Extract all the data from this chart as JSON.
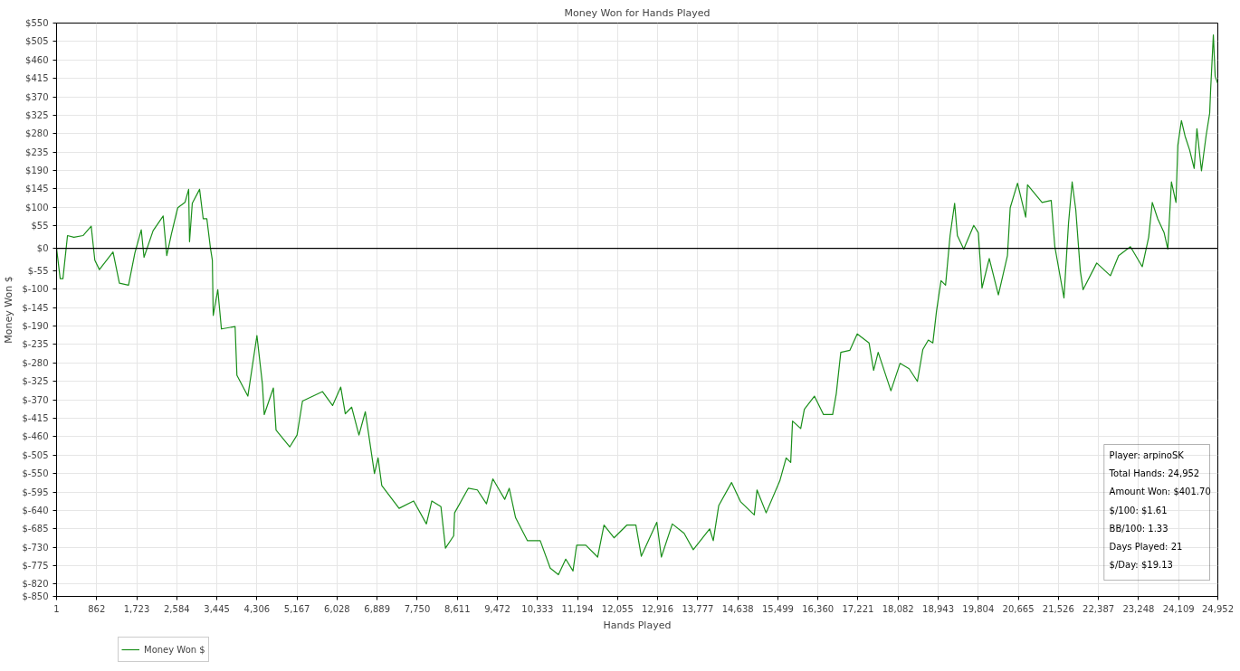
{
  "chart_data": {
    "type": "line",
    "title": "Money Won for Hands Played",
    "xlabel": "Hands Played",
    "ylabel": "Money Won $",
    "series": [
      {
        "name": "Money Won $",
        "color": "#1a8f1a",
        "x": [
          1,
          79,
          138,
          236,
          373,
          569,
          745,
          823,
          921,
          1214,
          1351,
          1547,
          1684,
          1821,
          1880,
          2075,
          2291,
          2369,
          2467,
          2604,
          2760,
          2839,
          2858,
          2917,
          3074,
          3152,
          3230,
          3308,
          3348,
          3367,
          3465,
          3543,
          3837,
          3876,
          4111,
          4306,
          4424,
          4463,
          4659,
          4717,
          5011,
          5168,
          5285,
          5716,
          5931,
          6107,
          6205,
          6342,
          6498,
          6635,
          6831,
          6909,
          6988,
          7360,
          7673,
          7947,
          8064,
          8260,
          8357,
          8534,
          8553,
          8847,
          9042,
          9238,
          9375,
          9512,
          9630,
          9727,
          9864,
          10119,
          10393,
          10608,
          10784,
          10941,
          11097,
          11176,
          11372,
          11626,
          11763,
          11978,
          12252,
          12448,
          12565,
          12898,
          12996,
          13231,
          13485,
          13681,
          14033,
          14111,
          14229,
          14503,
          14699,
          14992,
          15051,
          15247,
          15540,
          15677,
          15775,
          15814,
          15990,
          16068,
          16284,
          16480,
          16676,
          16754,
          16851,
          17047,
          17204,
          17458,
          17556,
          17654,
          17928,
          18124,
          18320,
          18497,
          18614,
          18732,
          18829,
          18908,
          19004,
          19102,
          19199,
          19297,
          19356,
          19493,
          19708,
          19806,
          19885,
          20041,
          20237,
          20432,
          20491,
          20648,
          20824,
          20863,
          21059,
          21176,
          21372,
          21450,
          21646,
          21744,
          21822,
          21900,
          21998,
          22057,
          22350,
          22644,
          22820,
          23074,
          23329,
          23466,
          23544,
          23661,
          23798,
          23877,
          23955,
          24053,
          24092,
          24170,
          24248,
          24346,
          24444,
          24503,
          24601,
          24699,
          24777,
          24797,
          24856,
          24895,
          24952
        ],
        "values": [
          0,
          -74,
          -74,
          31,
          27,
          31,
          54,
          -29,
          -52,
          -9,
          -85,
          -90,
          -11,
          45,
          -22,
          43,
          79,
          -18,
          34,
          99,
          112,
          144,
          16,
          110,
          144,
          72,
          72,
          0,
          -29,
          -164,
          -101,
          -197,
          -191,
          -310,
          -361,
          -213,
          -332,
          -406,
          -341,
          -444,
          -485,
          -456,
          -373,
          -350,
          -384,
          -339,
          -404,
          -388,
          -456,
          -399,
          -550,
          -512,
          -579,
          -635,
          -617,
          -673,
          -617,
          -631,
          -732,
          -702,
          -646,
          -586,
          -590,
          -624,
          -563,
          -590,
          -613,
          -586,
          -658,
          -714,
          -714,
          -781,
          -797,
          -759,
          -788,
          -725,
          -725,
          -754,
          -676,
          -707,
          -676,
          -676,
          -752,
          -669,
          -754,
          -673,
          -696,
          -736,
          -685,
          -714,
          -628,
          -572,
          -619,
          -651,
          -590,
          -646,
          -568,
          -512,
          -523,
          -422,
          -440,
          -393,
          -361,
          -406,
          -406,
          -355,
          -254,
          -249,
          -209,
          -231,
          -298,
          -254,
          -348,
          -281,
          -294,
          -325,
          -247,
          -224,
          -231,
          -153,
          -79,
          -90,
          31,
          110,
          31,
          -2,
          56,
          38,
          -97,
          -25,
          -114,
          -18,
          99,
          159,
          76,
          155,
          128,
          112,
          117,
          4,
          -121,
          61,
          162,
          94,
          -56,
          -101,
          -36,
          -67,
          -18,
          4,
          -45,
          27,
          112,
          72,
          38,
          -2,
          162,
          112,
          251,
          312,
          274,
          240,
          195,
          292,
          189,
          274,
          330,
          386,
          521,
          420,
          402
        ]
      }
    ],
    "xlim": [
      1,
      24952
    ],
    "xticks": [
      1,
      862,
      {
        "value": 1723,
        "label": "1,723"
      },
      {
        "value": 2584,
        "label": "2,584"
      },
      {
        "value": 3445,
        "label": "3,445"
      },
      {
        "value": 4306,
        "label": "4,306"
      },
      {
        "value": 5167,
        "label": "5,167"
      },
      {
        "value": 6028,
        "label": "6,028"
      },
      {
        "value": 6889,
        "label": "6,889"
      },
      {
        "value": 7750,
        "label": "7,750"
      },
      {
        "value": 8611,
        "label": "8,611"
      },
      {
        "value": 9472,
        "label": "9,472"
      },
      {
        "value": 10333,
        "label": "10,333"
      },
      {
        "value": 11194,
        "label": "11,194"
      },
      {
        "value": 12055,
        "label": "12,055"
      },
      {
        "value": 12916,
        "label": "12,916"
      },
      {
        "value": 13777,
        "label": "13,777"
      },
      {
        "value": 14638,
        "label": "14,638"
      },
      {
        "value": 15499,
        "label": "15,499"
      },
      {
        "value": 16360,
        "label": "16,360"
      },
      {
        "value": 17221,
        "label": "17,221"
      },
      {
        "value": 18082,
        "label": "18,082"
      },
      {
        "value": 18943,
        "label": "18,943"
      },
      {
        "value": 19804,
        "label": "19,804"
      },
      {
        "value": 20665,
        "label": "20,665"
      },
      {
        "value": 21526,
        "label": "21,526"
      },
      {
        "value": 22387,
        "label": "22,387"
      },
      {
        "value": 23248,
        "label": "23,248"
      },
      {
        "value": 24109,
        "label": "24,109"
      },
      {
        "value": 24952,
        "label": "24,952"
      }
    ],
    "ylim": [
      -850,
      550
    ],
    "yticks": [
      {
        "value": 550,
        "label": "$550"
      },
      {
        "value": 505,
        "label": "$505"
      },
      {
        "value": 460,
        "label": "$460"
      },
      {
        "value": 415,
        "label": "$415"
      },
      {
        "value": 370,
        "label": "$370"
      },
      {
        "value": 325,
        "label": "$325"
      },
      {
        "value": 280,
        "label": "$280"
      },
      {
        "value": 235,
        "label": "$235"
      },
      {
        "value": 190,
        "label": "$190"
      },
      {
        "value": 145,
        "label": "$145"
      },
      {
        "value": 100,
        "label": "$100"
      },
      {
        "value": 55,
        "label": "$55"
      },
      {
        "value": 0,
        "label": "$0"
      },
      {
        "value": -55,
        "label": "$-55"
      },
      {
        "value": -100,
        "label": "$-100"
      },
      {
        "value": -145,
        "label": "$-145"
      },
      {
        "value": -190,
        "label": "$-190"
      },
      {
        "value": -235,
        "label": "$-235"
      },
      {
        "value": -280,
        "label": "$-280"
      },
      {
        "value": -325,
        "label": "$-325"
      },
      {
        "value": -370,
        "label": "$-370"
      },
      {
        "value": -415,
        "label": "$-415"
      },
      {
        "value": -460,
        "label": "$-460"
      },
      {
        "value": -505,
        "label": "$-505"
      },
      {
        "value": -550,
        "label": "$-550"
      },
      {
        "value": -595,
        "label": "$-595"
      },
      {
        "value": -640,
        "label": "$-640"
      },
      {
        "value": -685,
        "label": "$-685"
      },
      {
        "value": -730,
        "label": "$-730"
      },
      {
        "value": -775,
        "label": "$-775"
      },
      {
        "value": -820,
        "label": "$-820"
      },
      {
        "value": -850,
        "label": "$-850"
      }
    ],
    "ref_lines": [
      {
        "axis": "y",
        "value": 0,
        "color": "#000000"
      }
    ],
    "annotations": [
      "Player: arpinoSK",
      "Total Hands: 24,952",
      "Amount Won: $401.70",
      "$/100: $1.61",
      "BB/100: 1.33",
      "Days Played: 21",
      "$/Day: $19.13"
    ],
    "grid": true,
    "legend": "bottom left",
    "line_style": "solid",
    "marker": "none"
  }
}
